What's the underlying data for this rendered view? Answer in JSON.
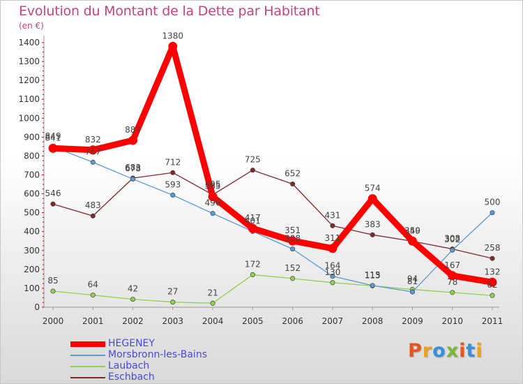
{
  "title": "Evolution du Montant de la Dette par Habitant",
  "subtitle": "(en €)",
  "logo_text": "Proxiti",
  "chart_data": {
    "type": "line",
    "x": [
      "2000",
      "2001",
      "2002",
      "2003",
      "2004",
      "2005",
      "2006",
      "2007",
      "2008",
      "2009",
      "2010",
      "2011"
    ],
    "ylim": [
      0,
      1400
    ],
    "yticks": [
      0,
      100,
      200,
      300,
      400,
      500,
      600,
      700,
      800,
      900,
      1000,
      1100,
      1200,
      1300,
      1400
    ],
    "grid": false,
    "legend_position": "bottom-left",
    "series": [
      {
        "name": "HEGENEY",
        "color": "#ff0000",
        "values": [
          841,
          832,
          883,
          1380,
          585,
          417,
          351,
          311,
          574,
          350,
          167,
          132
        ]
      },
      {
        "name": "Morsbronn-les-Bains",
        "color": "#5b9bd5",
        "values": [
          849,
          767,
          678,
          593,
          496,
          401,
          308,
          164,
          115,
          81,
          302,
          500
        ]
      },
      {
        "name": "Laubach",
        "color": "#92d050",
        "values": [
          85,
          64,
          42,
          27,
          21,
          172,
          152,
          130,
          113,
          94,
          78,
          62
        ]
      },
      {
        "name": "Eschbach",
        "color": "#7f2a2a",
        "values": [
          546,
          483,
          683,
          712,
          595,
          725,
          652,
          431,
          383,
          349,
          308,
          258
        ]
      }
    ]
  }
}
